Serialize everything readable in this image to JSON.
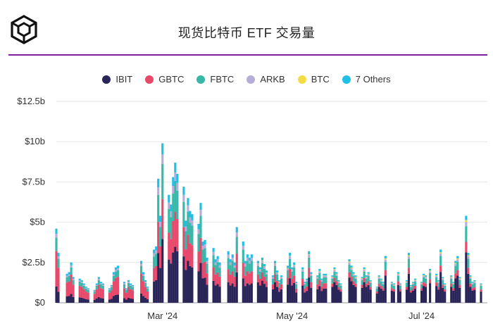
{
  "header": {
    "title": "现货比特币 ETF 交易量",
    "logo_icon": "cube-logo-icon"
  },
  "colors": {
    "IBIT": "#2a2559",
    "GBTC": "#e8496b",
    "FBTC": "#39b7a8",
    "ARKB": "#b6aed9",
    "BTC": "#f4dc45",
    "7 Others": "#21bfe6",
    "rule": "#7b1fa2"
  },
  "legend": [
    {
      "label": "IBIT",
      "color": "#2a2559"
    },
    {
      "label": "GBTC",
      "color": "#e8496b"
    },
    {
      "label": "FBTC",
      "color": "#39b7a8"
    },
    {
      "label": "ARKB",
      "color": "#b6aed9"
    },
    {
      "label": "BTC",
      "color": "#f4dc45"
    },
    {
      "label": "7 Others",
      "color": "#21bfe6"
    }
  ],
  "chart_data": {
    "type": "bar",
    "stacked": true,
    "title": "现货比特币 ETF 交易量",
    "ylim": [
      0,
      12.5
    ],
    "yticks": [
      "$0",
      "$2.5b",
      "$5b",
      "$7.5b",
      "$10b",
      "$12.5b"
    ],
    "ytick_values": [
      0,
      2.5,
      5,
      7.5,
      10,
      12.5
    ],
    "xticks": [
      "Mar '24",
      "May '24",
      "Jul '24"
    ],
    "xtick_dates": [
      "2024-03-01",
      "2024-05-01",
      "2024-07-01"
    ],
    "x_range": [
      "2024-01-11",
      "2024-08-01"
    ],
    "grid": true,
    "legend_position": "top",
    "series_names": [
      "IBIT",
      "GBTC",
      "FBTC",
      "ARKB",
      "BTC",
      "7 Others"
    ],
    "dates": [
      "2024-01-11",
      "2024-01-12",
      "2024-01-16",
      "2024-01-17",
      "2024-01-18",
      "2024-01-19",
      "2024-01-22",
      "2024-01-23",
      "2024-01-24",
      "2024-01-25",
      "2024-01-26",
      "2024-01-29",
      "2024-01-30",
      "2024-01-31",
      "2024-02-01",
      "2024-02-02",
      "2024-02-05",
      "2024-02-06",
      "2024-02-07",
      "2024-02-08",
      "2024-02-09",
      "2024-02-12",
      "2024-02-13",
      "2024-02-14",
      "2024-02-15",
      "2024-02-16",
      "2024-02-20",
      "2024-02-21",
      "2024-02-22",
      "2024-02-23",
      "2024-02-26",
      "2024-02-27",
      "2024-02-28",
      "2024-02-29",
      "2024-03-01",
      "2024-03-04",
      "2024-03-05",
      "2024-03-06",
      "2024-03-07",
      "2024-03-08",
      "2024-03-11",
      "2024-03-12",
      "2024-03-13",
      "2024-03-14",
      "2024-03-15",
      "2024-03-18",
      "2024-03-19",
      "2024-03-20",
      "2024-03-21",
      "2024-03-22",
      "2024-03-25",
      "2024-03-26",
      "2024-03-27",
      "2024-03-28",
      "2024-04-01",
      "2024-04-02",
      "2024-04-03",
      "2024-04-04",
      "2024-04-05",
      "2024-04-08",
      "2024-04-09",
      "2024-04-10",
      "2024-04-11",
      "2024-04-12",
      "2024-04-15",
      "2024-04-16",
      "2024-04-17",
      "2024-04-18",
      "2024-04-19",
      "2024-04-22",
      "2024-04-23",
      "2024-04-24",
      "2024-04-25",
      "2024-04-26",
      "2024-04-29",
      "2024-04-30",
      "2024-05-01",
      "2024-05-02",
      "2024-05-03",
      "2024-05-06",
      "2024-05-07",
      "2024-05-08",
      "2024-05-09",
      "2024-05-10",
      "2024-05-13",
      "2024-05-14",
      "2024-05-15",
      "2024-05-16",
      "2024-05-17",
      "2024-05-20",
      "2024-05-21",
      "2024-05-22",
      "2024-05-23",
      "2024-05-24",
      "2024-05-28",
      "2024-05-29",
      "2024-05-30",
      "2024-05-31",
      "2024-06-03",
      "2024-06-04",
      "2024-06-05",
      "2024-06-06",
      "2024-06-07",
      "2024-06-10",
      "2024-06-11",
      "2024-06-12",
      "2024-06-13",
      "2024-06-14",
      "2024-06-17",
      "2024-06-18",
      "2024-06-20",
      "2024-06-21",
      "2024-06-24",
      "2024-06-25",
      "2024-06-26",
      "2024-06-27",
      "2024-06-28",
      "2024-07-01",
      "2024-07-02",
      "2024-07-03",
      "2024-07-05",
      "2024-07-08",
      "2024-07-09",
      "2024-07-10",
      "2024-07-11",
      "2024-07-12",
      "2024-07-15",
      "2024-07-16",
      "2024-07-17",
      "2024-07-18",
      "2024-07-19",
      "2024-07-22",
      "2024-07-23",
      "2024-07-24",
      "2024-07-25",
      "2024-07-26",
      "2024-07-29",
      "2024-07-30",
      "2024-07-31"
    ],
    "totals": [
      4.6,
      3.1,
      1.8,
      1.9,
      2.5,
      1.6,
      1.5,
      1.4,
      1.2,
      1.0,
      0.9,
      0.8,
      1.2,
      1.6,
      1.3,
      1.2,
      0.9,
      1.1,
      1.9,
      2.2,
      2.3,
      1.3,
      0.9,
      1.4,
      1.2,
      1.1,
      2.6,
      1.9,
      1.4,
      1.0,
      3.3,
      3.5,
      7.7,
      5.4,
      9.9,
      6.7,
      6.1,
      7.8,
      8.7,
      8.0,
      7.2,
      5.1,
      6.5,
      5.7,
      5.5,
      4.9,
      6.2,
      3.8,
      3.9,
      2.8,
      3.4,
      2.7,
      2.9,
      2.5,
      3.2,
      2.7,
      3.0,
      2.5,
      4.7,
      3.8,
      2.6,
      3.0,
      2.8,
      3.0,
      2.6,
      2.2,
      2.8,
      2.4,
      2.0,
      1.7,
      2.6,
      2.0,
      1.4,
      1.7,
      2.3,
      3.1,
      2.2,
      2.5,
      1.3,
      2.2,
      1.3,
      1.5,
      3.2,
      1.9,
      1.7,
      2.1,
      1.5,
      1.8,
      1.8,
      1.7,
      2.2,
      1.9,
      1.4,
      1.2,
      2.7,
      2.3,
      1.9,
      1.7,
      1.6,
      2.2,
      1.7,
      1.9,
      1.4,
      1.0,
      1.7,
      1.5,
      1.3,
      2.9,
      1.3,
      1.2,
      1.9,
      1.2,
      1.4,
      3.1,
      1.1,
      1.3,
      1.5,
      1.3,
      1.8,
      1.7,
      2.1,
      1.8,
      1.4,
      3.3,
      1.6,
      1.2,
      1.7,
      1.3,
      2.6,
      2.9,
      1.6,
      5.4,
      3.1,
      1.7,
      1.3,
      1.4,
      1.2
    ],
    "shares": {
      "early": [
        0.22,
        0.48,
        0.18,
        0.05,
        0.0,
        0.07
      ],
      "peak": [
        0.4,
        0.25,
        0.22,
        0.06,
        0.0,
        0.07
      ],
      "late": [
        0.58,
        0.12,
        0.18,
        0.05,
        0.02,
        0.05
      ]
    }
  }
}
